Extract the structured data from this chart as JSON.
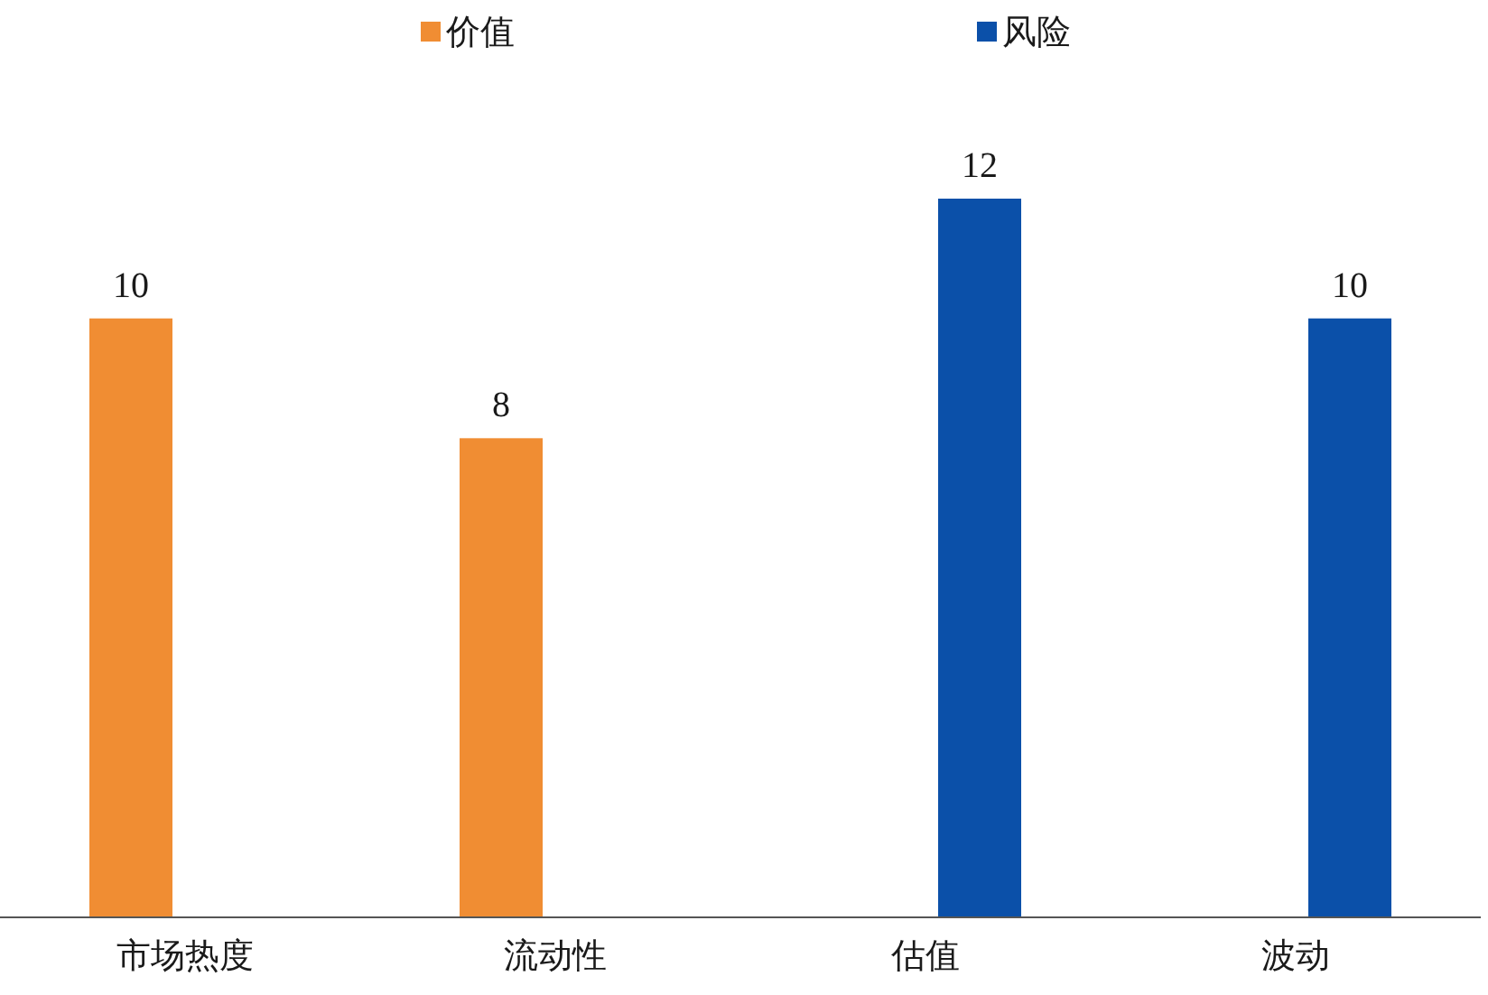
{
  "chart_data": {
    "type": "bar",
    "categories": [
      "市场热度",
      "流动性",
      "估值",
      "波动"
    ],
    "series": [
      {
        "name": "价值",
        "color": "#f08d33",
        "values": [
          10,
          8,
          null,
          null
        ]
      },
      {
        "name": "风险",
        "color": "#0b50a9",
        "values": [
          null,
          null,
          12,
          10
        ]
      }
    ],
    "data_labels": true,
    "legend": "top",
    "tick_labels": "x",
    "grid": false
  }
}
